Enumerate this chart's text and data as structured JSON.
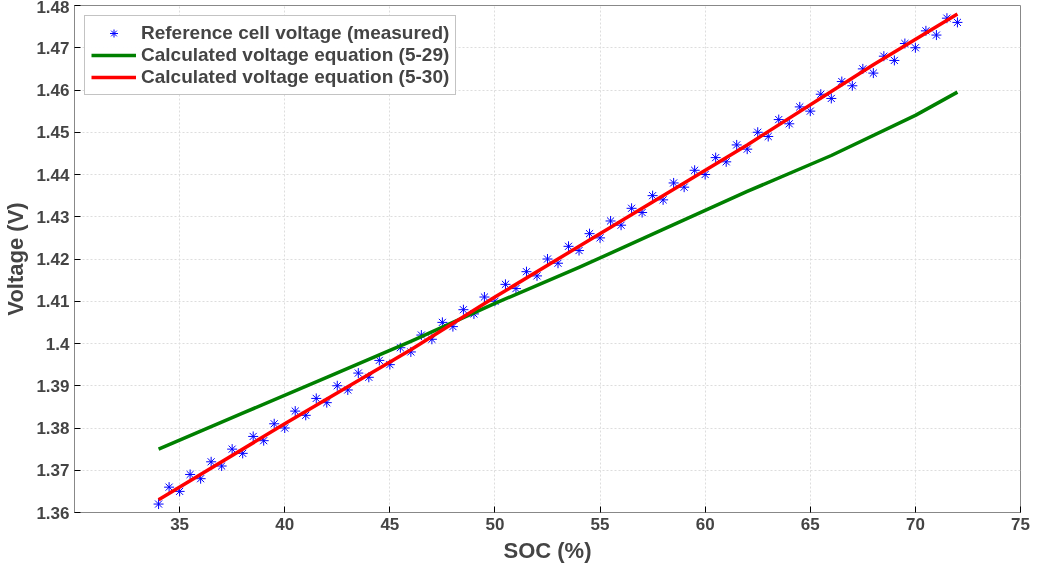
{
  "chart_data": {
    "type": "line",
    "xlabel": "SOC (%)",
    "ylabel": "Voltage (V)",
    "xlim": [
      30,
      75
    ],
    "xticks": [
      35,
      40,
      45,
      50,
      55,
      60,
      65,
      70,
      75
    ],
    "ylim": [
      1.36,
      1.48
    ],
    "yticks": [
      1.36,
      1.37,
      1.38,
      1.39,
      {
        "value": 1.4,
        "label": "1.4"
      },
      1.41,
      1.42,
      1.43,
      1.44,
      1.45,
      1.46,
      1.47,
      1.48
    ],
    "grid": true,
    "legend": "top left",
    "series": [
      {
        "name": "Reference cell voltage (measured)",
        "type": "scatter",
        "marker": "cross",
        "color": "#0000ff",
        "x": [
          34,
          34.5,
          35,
          35.5,
          36,
          36.5,
          37,
          37.5,
          38,
          38.5,
          39,
          39.5,
          40,
          40.5,
          41,
          41.5,
          42,
          42.5,
          43,
          43.5,
          44,
          44.5,
          45,
          45.5,
          46,
          46.5,
          47,
          47.5,
          48,
          48.5,
          49,
          49.5,
          50,
          50.5,
          51,
          51.5,
          52,
          52.5,
          53,
          53.5,
          54,
          54.5,
          55,
          55.5,
          56,
          56.5,
          57,
          57.5,
          58,
          58.5,
          59,
          59.5,
          60,
          60.5,
          61,
          61.5,
          62,
          62.5,
          63,
          63.5,
          64,
          64.5,
          65,
          65.5,
          66,
          66.5,
          67,
          67.5,
          68,
          68.5,
          69,
          69.5,
          70,
          70.5,
          71,
          71.5,
          72
        ],
        "values": [
          1.362,
          1.366,
          1.365,
          1.369,
          1.368,
          1.372,
          1.371,
          1.375,
          1.374,
          1.378,
          1.377,
          1.381,
          1.38,
          1.384,
          1.383,
          1.387,
          1.386,
          1.39,
          1.389,
          1.393,
          1.392,
          1.396,
          1.395,
          1.399,
          1.398,
          1.402,
          1.401,
          1.405,
          1.404,
          1.408,
          1.407,
          1.411,
          1.41,
          1.414,
          1.413,
          1.417,
          1.416,
          1.42,
          1.419,
          1.423,
          1.422,
          1.426,
          1.425,
          1.429,
          1.428,
          1.432,
          1.431,
          1.435,
          1.434,
          1.438,
          1.437,
          1.441,
          1.44,
          1.444,
          1.443,
          1.447,
          1.446,
          1.45,
          1.449,
          1.453,
          1.452,
          1.456,
          1.455,
          1.459,
          1.458,
          1.462,
          1.461,
          1.465,
          1.464,
          1.468,
          1.467,
          1.471,
          1.47,
          1.474,
          1.473,
          1.477,
          1.476
        ]
      },
      {
        "name": "Calculated voltage equation (5-29)",
        "color": "#008000",
        "x": [
          34,
          38,
          42,
          46,
          50,
          54,
          58,
          62,
          66,
          70,
          72
        ],
        "values": [
          1.375,
          1.3835,
          1.392,
          1.4005,
          1.4095,
          1.418,
          1.427,
          1.436,
          1.4445,
          1.454,
          1.4595
        ]
      },
      {
        "name": "Calculated voltage equation (5-30)",
        "color": "#ff0000",
        "x": [
          34,
          40,
          46,
          50,
          56,
          62,
          68,
          72
        ],
        "values": [
          1.363,
          1.381,
          1.3985,
          1.411,
          1.429,
          1.447,
          1.466,
          1.478
        ]
      }
    ]
  }
}
